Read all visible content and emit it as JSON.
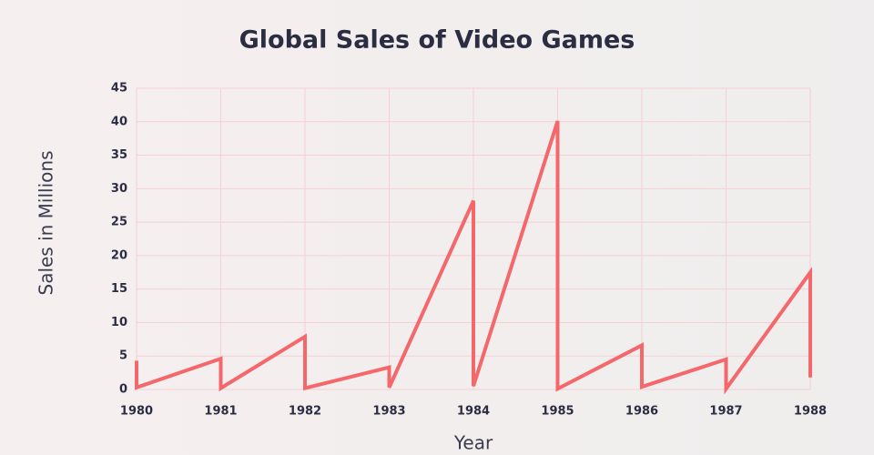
{
  "chart_data": {
    "type": "line",
    "title": "Global Sales of Video Games",
    "x_label": "Year",
    "y_label": "Sales in Millions",
    "x": [
      1980,
      1980,
      1981,
      1981,
      1982,
      1982,
      1983,
      1983,
      1984,
      1984,
      1985,
      1985,
      1986,
      1986,
      1987,
      1987,
      1988,
      1988
    ],
    "series": [
      {
        "name": "Sales",
        "color": "#f4676b",
        "values": [
          4.3,
          0.3,
          4.6,
          0.2,
          7.9,
          0.2,
          3.3,
          0.3,
          28.2,
          0.5,
          40.1,
          0.1,
          6.6,
          0.4,
          4.5,
          0.1,
          17.5,
          1.8
        ]
      }
    ],
    "xlim": [
      1980,
      1988
    ],
    "xticks": [
      1980,
      1981,
      1982,
      1983,
      1984,
      1985,
      1986,
      1987,
      1988
    ],
    "ylim": [
      0,
      45
    ],
    "yticks": [
      0,
      5,
      10,
      15,
      20,
      25,
      30,
      35,
      40,
      45
    ],
    "grid": true
  }
}
